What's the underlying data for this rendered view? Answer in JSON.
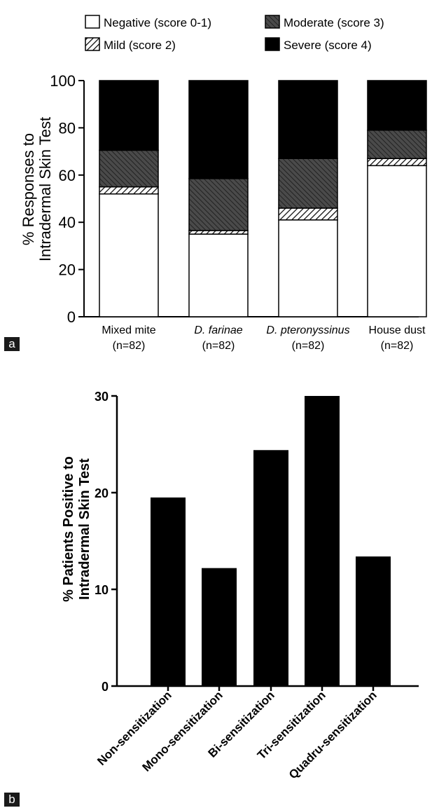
{
  "panel_labels": [
    "a",
    "b"
  ],
  "colors": {
    "background": "#ffffff",
    "ink": "#000000",
    "moderate_fill": "#555555",
    "label_box": "#1a1a1a"
  },
  "chart_data": [
    {
      "id": "a",
      "type": "bar",
      "stacked": true,
      "title": "",
      "ylabel": [
        "% Responses to",
        "Intradermal Skin Test"
      ],
      "xlabel": "",
      "ylim": [
        0,
        100
      ],
      "yticks": [
        0,
        20,
        40,
        60,
        80,
        100
      ],
      "grid": false,
      "legend_position": "top",
      "categories": [
        {
          "name": "Mixed mite",
          "italic": false,
          "n": "(n=82)"
        },
        {
          "name": "D. farinae",
          "italic": true,
          "n": "(n=82)"
        },
        {
          "name": "D. pteronyssinus",
          "italic": true,
          "n": "(n=82)"
        },
        {
          "name": "House dust",
          "italic": false,
          "n": "(n=82)"
        }
      ],
      "series": [
        {
          "name": "Negative (score 0-1)",
          "pattern": "white",
          "values": [
            52,
            35,
            41,
            64
          ]
        },
        {
          "name": "Mild (score 2)",
          "pattern": "hatch-light",
          "values": [
            3,
            1.5,
            5,
            3
          ]
        },
        {
          "name": "Moderate (score 3)",
          "pattern": "hatch-dark",
          "values": [
            15.5,
            22,
            21,
            12
          ]
        },
        {
          "name": "Severe (score 4)",
          "pattern": "black",
          "values": [
            29.5,
            41.5,
            33,
            21
          ]
        }
      ]
    },
    {
      "id": "b",
      "type": "bar",
      "title": "",
      "ylabel": [
        "% Patients Positive to",
        "Intradermal Skin Test"
      ],
      "xlabel": "",
      "ylim": [
        0,
        30
      ],
      "yticks": [
        0,
        10,
        20,
        30
      ],
      "grid": false,
      "categories": [
        "Non-sensitization",
        "Mono-sensitization",
        "Bi-sensitization",
        "Tri-sensitization",
        "Quadru-sensitization"
      ],
      "values": [
        19.5,
        12.2,
        24.4,
        30.0,
        13.4
      ]
    }
  ]
}
